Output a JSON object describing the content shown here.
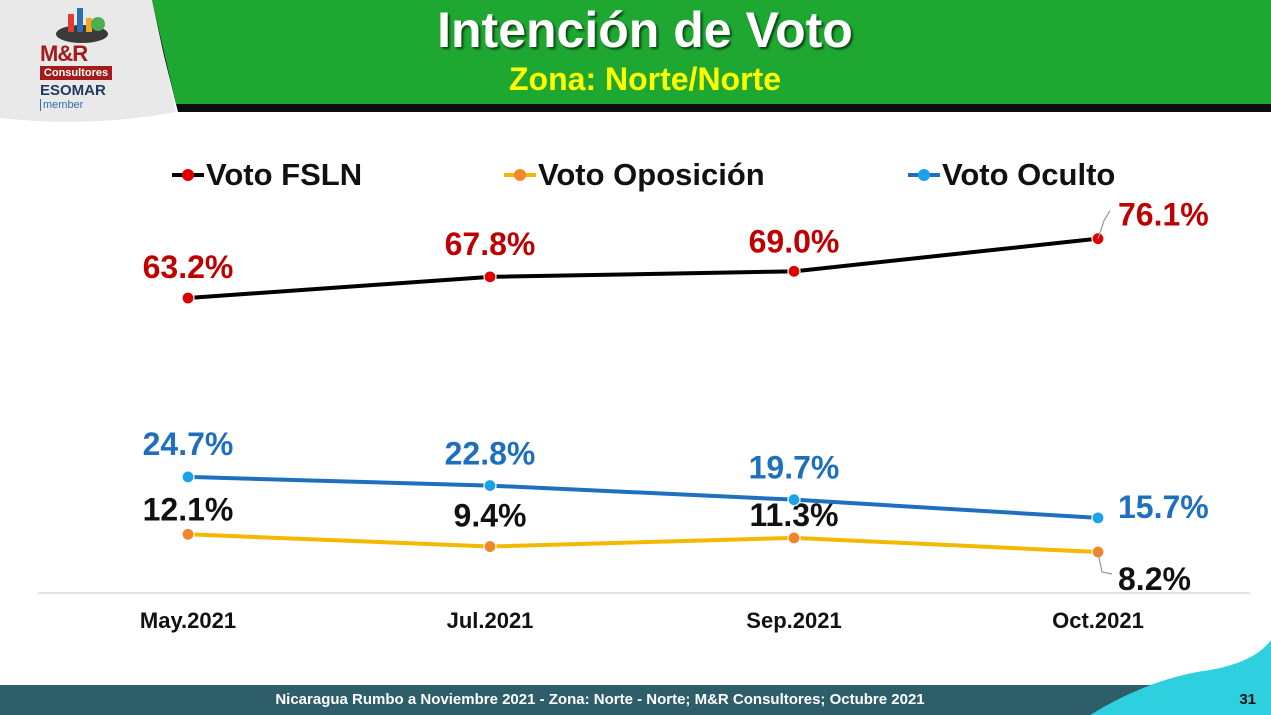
{
  "header": {
    "title": "Intención de Voto",
    "subtitle": "Zona: Norte/Norte",
    "logo": {
      "brand": "M&R",
      "sub": "Consultores",
      "association": "ESOMAR",
      "member": "member"
    }
  },
  "colors": {
    "header_green": "#1ea832",
    "fsln_line": "#000000",
    "fsln_marker": "#e00000",
    "fsln_label": "#c00000",
    "oposicion_line": "#f5b800",
    "oposicion_marker": "#f0852a",
    "oposicion_label": "#111111",
    "oculto_line": "#1f6fbf",
    "oculto_marker": "#1aa3e8",
    "oculto_label": "#1f6fbf",
    "footer": "#2e5e6a",
    "footer_accent": "#2ed0e0"
  },
  "chart_data": {
    "type": "line",
    "categories": [
      "May.2021",
      "Jul.2021",
      "Sep.2021",
      "Oct.2021"
    ],
    "series": [
      {
        "name": "Voto FSLN",
        "values": [
          63.2,
          67.8,
          69.0,
          76.1
        ],
        "labels": [
          "63.2%",
          "67.8%",
          "69.0%",
          "76.1%"
        ]
      },
      {
        "name": "Voto Oposición",
        "values": [
          12.1,
          9.4,
          11.3,
          8.2
        ],
        "labels": [
          "12.1%",
          "9.4%",
          "11.3%",
          "8.2%"
        ]
      },
      {
        "name": "Voto Oculto",
        "values": [
          24.7,
          22.8,
          19.7,
          15.7
        ],
        "labels": [
          "24.7%",
          "22.8%",
          "19.7%",
          "15.7%"
        ]
      }
    ],
    "legend_position": "top",
    "grid": false
  },
  "footer": {
    "text": "Nicaragua Rumbo a Noviembre 2021 - Zona: Norte - Norte; M&R Consultores; Octubre 2021",
    "page_number": "31"
  }
}
